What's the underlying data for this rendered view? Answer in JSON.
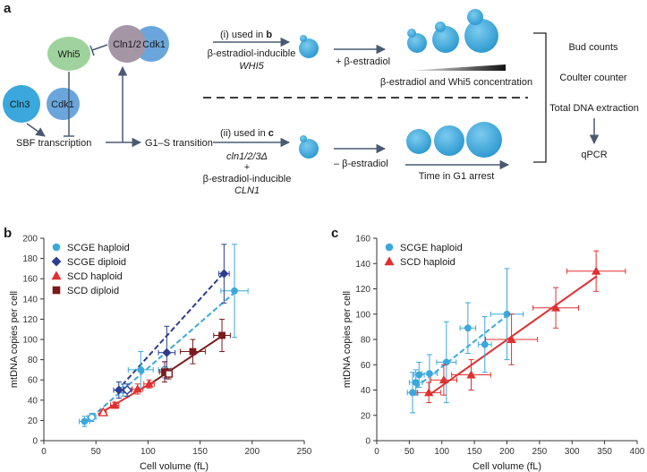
{
  "figure": {
    "panel_a": {
      "letter": "a",
      "nodes": {
        "whi5": "Whi5",
        "cln12": "Cln1/2",
        "cdk1_top": "Cdk1",
        "cln3": "Cln3",
        "cdk1_bottom": "Cdk1",
        "sbf": "SBF transcription",
        "g1s": "G1–S transition"
      },
      "path_i": {
        "label_prefix": "(i) used in ",
        "label_panel": "b",
        "line1": "β-estradiol-inducible",
        "line2": "WHI5",
        "treatment": "+ β-estradiol",
        "gradient_label": "β-estradiol and Whi5 concentration"
      },
      "path_ii": {
        "label_prefix": "(ii) used in ",
        "label_panel": "c",
        "line1": "cln1/2/3Δ",
        "line2": "+",
        "line3": "β-estradiol-inducible",
        "line4": "CLN1",
        "treatment": "– β-estradiol",
        "time_label": "Time in G1 arrest"
      },
      "measurements": {
        "bud": "Bud counts",
        "coulter": "Coulter counter",
        "dna": "Total  DNA extraction",
        "qpcr": "qPCR"
      },
      "colors": {
        "cell": "#3aa8dc",
        "whi5": "#9fd29c",
        "cln12": "#a596a6",
        "cdk1": "#6aa6db",
        "cln3": "#3aa8dc",
        "arrow": "#4a5a72"
      }
    }
  },
  "chart_data": [
    {
      "type": "scatter",
      "panel": "b",
      "title": "",
      "xlabel": "Cell volume (fL)",
      "ylabel": "mtDNA copies per cell",
      "xlim": [
        0,
        250
      ],
      "ylim": [
        0,
        200
      ],
      "xticks": [
        "0",
        "50",
        "100",
        "150",
        "200",
        "250"
      ],
      "yticks": [
        "0",
        "20",
        "40",
        "60",
        "80",
        "100",
        "120",
        "140",
        "160",
        "180",
        "200"
      ],
      "legend_position": "top-left",
      "series": [
        {
          "name": "SCGE haploid",
          "color": "#3aa8dc",
          "marker": "circle",
          "line": "dashed",
          "fit": [
            [
              40,
              18
            ],
            [
              185,
              148
            ]
          ],
          "points": [
            {
              "x": 39,
              "y": 19,
              "ex": 5,
              "ey": 5,
              "open": false
            },
            {
              "x": 46,
              "y": 23,
              "ex": 4,
              "ey": 4,
              "open": true
            },
            {
              "x": 76,
              "y": 50,
              "ex": 5,
              "ey": 6,
              "open": true
            },
            {
              "x": 93,
              "y": 70,
              "ex": 12,
              "ey": 18,
              "open": false
            },
            {
              "x": 116,
              "y": 70,
              "ex": 6,
              "ey": 8,
              "open": true
            },
            {
              "x": 183,
              "y": 148,
              "ex": 13,
              "ey": 46,
              "open": false
            }
          ]
        },
        {
          "name": "SCGE diploid",
          "color": "#2c3d8f",
          "marker": "diamond",
          "line": "dashed",
          "fit": [
            [
              70,
              49
            ],
            [
              172,
              165
            ]
          ],
          "points": [
            {
              "x": 72,
              "y": 50,
              "ex": 5,
              "ey": 8,
              "open": false
            },
            {
              "x": 80,
              "y": 50,
              "ex": 4,
              "ey": 6,
              "open": true
            },
            {
              "x": 118,
              "y": 87,
              "ex": 8,
              "ey": 26,
              "open": false
            },
            {
              "x": 173,
              "y": 165,
              "ex": 5,
              "ey": 29,
              "open": false
            }
          ]
        },
        {
          "name": "SCD haploid",
          "color": "#e03030",
          "marker": "triangle",
          "line": "solid",
          "fit": [
            [
              52,
              26
            ],
            [
              105,
              58
            ]
          ],
          "points": [
            {
              "x": 57,
              "y": 28,
              "ex": 3,
              "ey": 2,
              "open": true
            },
            {
              "x": 68,
              "y": 35,
              "ex": 4,
              "ey": 3,
              "open": false
            },
            {
              "x": 90,
              "y": 51,
              "ex": 5,
              "ey": 5,
              "open": false
            },
            {
              "x": 101,
              "y": 56,
              "ex": 5,
              "ey": 4,
              "open": false
            }
          ]
        },
        {
          "name": "SCD diploid",
          "color": "#7a1a1a",
          "marker": "square",
          "line": "solid",
          "fit": [
            [
              105,
              58
            ],
            [
              172,
              104
            ]
          ],
          "points": [
            {
              "x": 116,
              "y": 68,
              "ex": 5,
              "ey": 10,
              "open": false
            },
            {
              "x": 120,
              "y": 66,
              "ex": 3,
              "ey": 5,
              "open": true
            },
            {
              "x": 143,
              "y": 88,
              "ex": 12,
              "ey": 12,
              "open": false
            },
            {
              "x": 171,
              "y": 104,
              "ex": 8,
              "ey": 16,
              "open": false
            }
          ]
        }
      ]
    },
    {
      "type": "scatter",
      "panel": "c",
      "title": "",
      "xlabel": "Cell volume (fL)",
      "ylabel": "mtDNA copies per cell",
      "xlim": [
        0,
        400
      ],
      "ylim": [
        0,
        160
      ],
      "xticks": [
        "0",
        "50",
        "100",
        "150",
        "200",
        "250",
        "300",
        "350",
        "400"
      ],
      "yticks": [
        "0",
        "20",
        "40",
        "60",
        "80",
        "100",
        "120",
        "140",
        "160"
      ],
      "legend_position": "top-left",
      "series": [
        {
          "name": "SCGE haploid",
          "color": "#3aa8dc",
          "marker": "circle",
          "line": "dashed",
          "fit": [
            [
              50,
              38
            ],
            [
              203,
              100
            ]
          ],
          "points": [
            {
              "x": 55,
              "y": 38,
              "ex": 8,
              "ey": 16
            },
            {
              "x": 60,
              "y": 46,
              "ex": 10,
              "ey": 10
            },
            {
              "x": 65,
              "y": 52,
              "ex": 8,
              "ey": 10
            },
            {
              "x": 81,
              "y": 53,
              "ex": 12,
              "ey": 15
            },
            {
              "x": 107,
              "y": 62,
              "ex": 15,
              "ey": 32
            },
            {
              "x": 140,
              "y": 89,
              "ex": 12,
              "ey": 20
            },
            {
              "x": 166,
              "y": 76,
              "ex": 10,
              "ey": 22
            },
            {
              "x": 200,
              "y": 100,
              "ex": 25,
              "ey": 36
            }
          ]
        },
        {
          "name": "SCD haploid",
          "color": "#e03030",
          "marker": "triangle",
          "line": "solid",
          "fit": [
            [
              80,
              36
            ],
            [
              338,
              130
            ]
          ],
          "points": [
            {
              "x": 80,
              "y": 38,
              "ex": 18,
              "ey": 8
            },
            {
              "x": 103,
              "y": 48,
              "ex": 20,
              "ey": 12
            },
            {
              "x": 145,
              "y": 52,
              "ex": 30,
              "ey": 12
            },
            {
              "x": 207,
              "y": 80,
              "ex": 40,
              "ey": 20
            },
            {
              "x": 275,
              "y": 105,
              "ex": 35,
              "ey": 16
            },
            {
              "x": 337,
              "y": 134,
              "ex": 45,
              "ey": 16
            }
          ]
        }
      ]
    }
  ]
}
